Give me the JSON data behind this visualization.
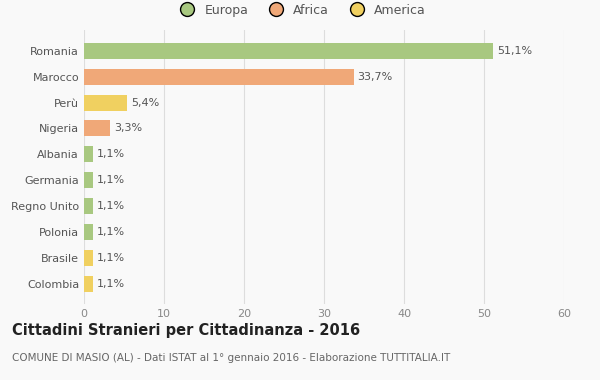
{
  "categories": [
    "Romania",
    "Marocco",
    "Perù",
    "Nigeria",
    "Albania",
    "Germania",
    "Regno Unito",
    "Polonia",
    "Brasile",
    "Colombia"
  ],
  "values": [
    51.1,
    33.7,
    5.4,
    3.3,
    1.1,
    1.1,
    1.1,
    1.1,
    1.1,
    1.1
  ],
  "labels": [
    "51,1%",
    "33,7%",
    "5,4%",
    "3,3%",
    "1,1%",
    "1,1%",
    "1,1%",
    "1,1%",
    "1,1%",
    "1,1%"
  ],
  "colors": [
    "#a8c880",
    "#f0a878",
    "#f0d060",
    "#f0a878",
    "#a8c880",
    "#a8c880",
    "#a8c880",
    "#a8c880",
    "#f0d060",
    "#f0d060"
  ],
  "legend": [
    {
      "label": "Europa",
      "color": "#a8c880"
    },
    {
      "label": "Africa",
      "color": "#f0a878"
    },
    {
      "label": "America",
      "color": "#f0d060"
    }
  ],
  "xlim": [
    0,
    60
  ],
  "xticks": [
    0,
    10,
    20,
    30,
    40,
    50,
    60
  ],
  "title": "Cittadini Stranieri per Cittadinanza - 2016",
  "subtitle": "COMUNE DI MASIO (AL) - Dati ISTAT al 1° gennaio 2016 - Elaborazione TUTTITALIA.IT",
  "background_color": "#f9f9f9",
  "title_fontsize": 10.5,
  "subtitle_fontsize": 7.5,
  "label_fontsize": 8,
  "tick_fontsize": 8,
  "legend_fontsize": 9
}
